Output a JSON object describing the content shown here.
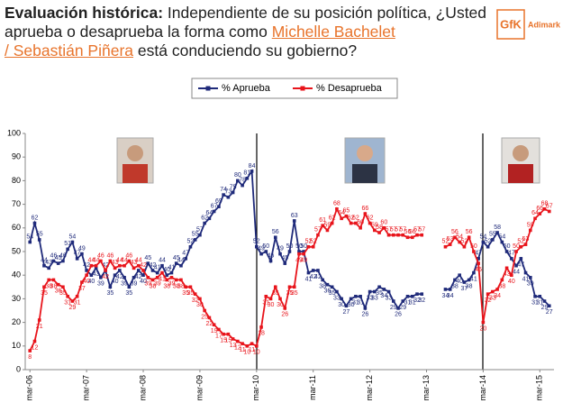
{
  "header": {
    "title_bold": "Evaluación histórica:",
    "text_1": "Independiente de su posición política, ¿Usted aprueba o desaprueba la forma como",
    "link_1": "Michelle Bachelet",
    "link_2": "/ Sebastián Piñera",
    "text_2": "está conduciendo su gobierno?"
  },
  "logo": {
    "brand": "GfK",
    "name": "Adimark"
  },
  "chart_data": {
    "type": "line",
    "x": [
      0,
      1,
      2,
      3,
      4,
      5,
      6,
      7,
      8,
      9,
      10,
      11,
      12,
      13,
      14,
      15,
      16,
      17,
      18,
      19,
      20,
      21,
      22,
      23,
      24,
      25,
      26,
      27,
      28,
      29,
      30,
      31,
      32,
      33,
      34,
      35,
      36,
      37,
      38,
      39,
      40,
      41,
      42,
      43,
      44,
      45,
      46,
      47,
      48,
      49,
      50,
      51,
      52,
      53,
      54,
      55,
      56,
      57,
      58,
      59,
      60,
      61,
      62,
      63,
      64,
      65,
      66,
      67,
      68,
      69,
      70,
      71,
      72,
      73,
      74,
      75,
      76,
      77,
      78,
      79,
      80,
      81,
      82,
      83,
      84,
      85,
      86,
      87,
      88,
      89,
      90,
      91,
      92,
      93,
      94,
      95,
      96,
      97,
      98,
      99,
      100,
      101,
      102,
      103,
      104,
      105,
      106,
      107,
      108,
      109,
      110
    ],
    "xlim": [
      -1,
      111
    ],
    "xticks": [
      {
        "value": 0,
        "label": "mar-06"
      },
      {
        "value": 12,
        "label": "mar-07"
      },
      {
        "value": 24,
        "label": "mar-08"
      },
      {
        "value": 36,
        "label": "mar-09"
      },
      {
        "value": 48,
        "label": "mar-10"
      },
      {
        "value": 60,
        "label": "mar-11"
      },
      {
        "value": 72,
        "label": "mar-12"
      },
      {
        "value": 84,
        "label": "mar-13"
      },
      {
        "value": 96,
        "label": "mar-14"
      },
      {
        "value": 108,
        "label": "mar-15"
      }
    ],
    "ylim": [
      0,
      100
    ],
    "yticks": [
      0,
      10,
      20,
      30,
      40,
      50,
      60,
      70,
      80,
      90,
      100
    ],
    "series": [
      {
        "name": "% Aprueba",
        "color": "#1f2a7a",
        "values": [
          54,
          62,
          55,
          44,
          43,
          46,
          45,
          46,
          51,
          54,
          47,
          49,
          42,
          40,
          43,
          39,
          42,
          35,
          40,
          42,
          39,
          35,
          39,
          42,
          40,
          45,
          42,
          41,
          44,
          40,
          41,
          45,
          44,
          47,
          52,
          55,
          57,
          62,
          64,
          67,
          69,
          74,
          73,
          75,
          80,
          78,
          81,
          84,
          52,
          49,
          50,
          46,
          56,
          49,
          45,
          50,
          63,
          50,
          50,
          41,
          42,
          42,
          38,
          36,
          35,
          33,
          30,
          27,
          30,
          31,
          31,
          26,
          33,
          33,
          35,
          34,
          33,
          29,
          26,
          29,
          31,
          31,
          32,
          32,
          null,
          null,
          null,
          null,
          34,
          34,
          38,
          40,
          37,
          38,
          41,
          47,
          54,
          52,
          55,
          58,
          54,
          50,
          47,
          44,
          47,
          41,
          39,
          31,
          31,
          29,
          27
        ]
      },
      {
        "name": "% Desaprueba",
        "color": "#e8141b",
        "values": [
          8,
          12,
          21,
          35,
          38,
          38,
          36,
          35,
          31,
          29,
          31,
          37,
          40,
          44,
          44,
          46,
          42,
          46,
          43,
          44,
          44,
          46,
          43,
          44,
          42,
          39,
          38,
          39,
          41,
          38,
          39,
          38,
          38,
          35,
          35,
          32,
          30,
          25,
          22,
          19,
          17,
          15,
          15,
          13,
          12,
          11,
          10,
          11,
          10,
          18,
          31,
          30,
          35,
          30,
          26,
          35,
          35,
          49,
          49,
          52,
          52,
          57,
          61,
          59,
          62,
          68,
          64,
          65,
          62,
          62,
          60,
          66,
          62,
          59,
          58,
          60,
          57,
          57,
          57,
          57,
          56,
          56,
          57,
          57,
          null,
          null,
          null,
          null,
          52,
          53,
          56,
          54,
          52,
          56,
          50,
          45,
          20,
          32,
          33,
          34,
          38,
          43,
          40,
          50,
          52,
          53,
          59,
          64,
          66,
          68,
          67
        ]
      }
    ]
  }
}
